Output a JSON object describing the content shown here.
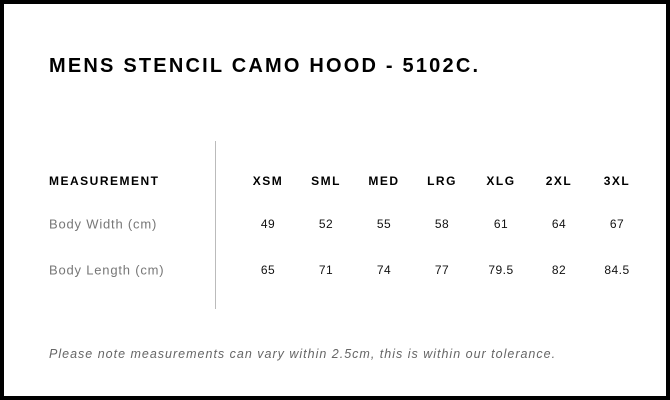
{
  "title": "MENS STENCIL CAMO HOOD - 5102C.",
  "table": {
    "header_label": "MEASUREMENT",
    "sizes": [
      "XSM",
      "SML",
      "MED",
      "LRG",
      "XLG",
      "2XL",
      "3XL"
    ],
    "rows": [
      {
        "label": "Body Width (cm)",
        "values": [
          "49",
          "52",
          "55",
          "58",
          "61",
          "64",
          "67"
        ]
      },
      {
        "label": "Body Length (cm)",
        "values": [
          "65",
          "71",
          "74",
          "77",
          "79.5",
          "82",
          "84.5"
        ]
      }
    ]
  },
  "note": "Please note measurements can vary within 2.5cm, this is within our tolerance."
}
